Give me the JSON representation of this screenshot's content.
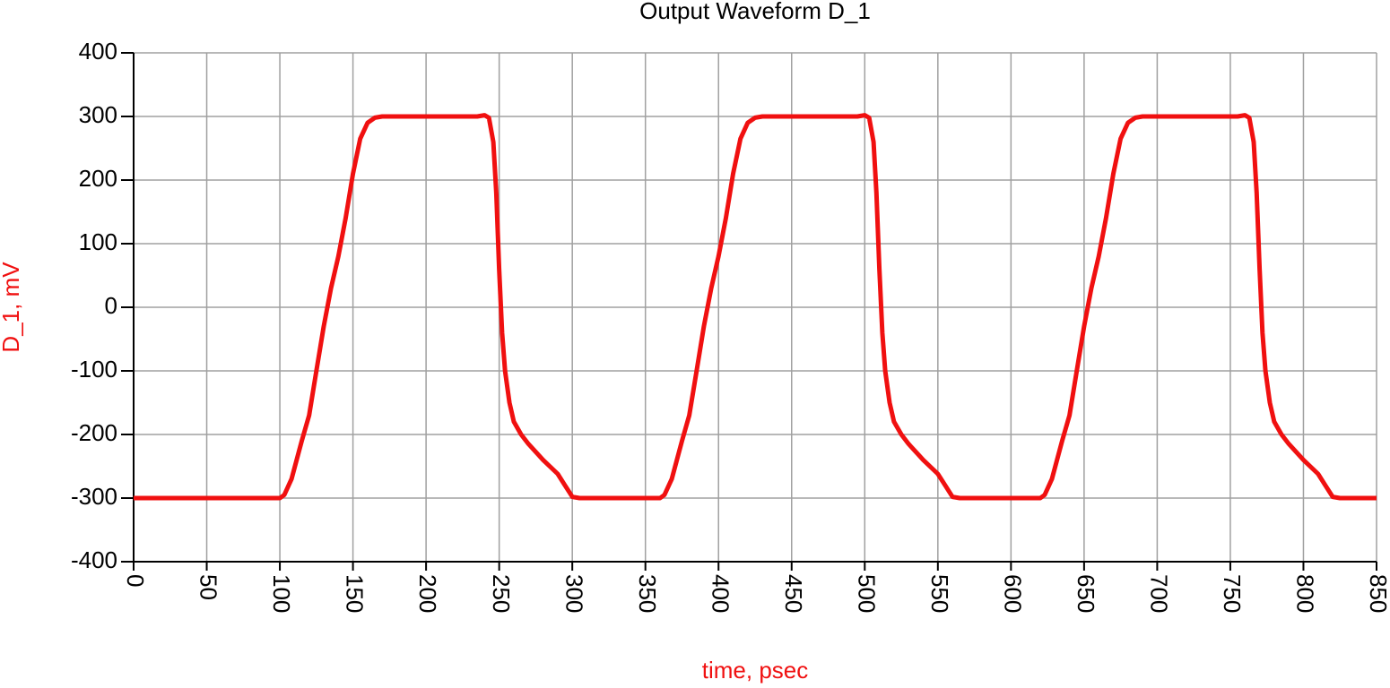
{
  "chart_data": {
    "type": "line",
    "title": "Output Waveform D_1",
    "x_label": "time, psec",
    "y_label": "D_1, mV",
    "xlim": [
      0,
      850
    ],
    "ylim": [
      -400,
      400
    ],
    "xticks": [
      0,
      50,
      100,
      150,
      200,
      250,
      300,
      350,
      400,
      450,
      500,
      550,
      600,
      650,
      700,
      750,
      800,
      850
    ],
    "yticks": [
      -400,
      -300,
      -200,
      -100,
      0,
      100,
      200,
      300,
      400
    ],
    "grid": true,
    "series": [
      {
        "name": "D_1",
        "color": "#f01010",
        "x": [
          0,
          100,
          103,
          108,
          115,
          120,
          125,
          130,
          135,
          140,
          145,
          150,
          155,
          160,
          165,
          170,
          235,
          240,
          243,
          246,
          248,
          250,
          252,
          254,
          257,
          260,
          265,
          270,
          280,
          290,
          295,
          300,
          305,
          360,
          363,
          368,
          375,
          380,
          385,
          390,
          395,
          400,
          405,
          410,
          415,
          420,
          425,
          430,
          495,
          500,
          503,
          506,
          508,
          510,
          512,
          514,
          517,
          520,
          525,
          530,
          540,
          550,
          555,
          560,
          565,
          620,
          623,
          628,
          635,
          640,
          645,
          650,
          655,
          660,
          665,
          670,
          675,
          680,
          685,
          690,
          755,
          760,
          763,
          766,
          768,
          770,
          772,
          774,
          777,
          780,
          785,
          790,
          800,
          810,
          815,
          820,
          825,
          850
        ],
        "values": [
          -300,
          -300,
          -295,
          -270,
          -210,
          -170,
          -100,
          -30,
          30,
          80,
          140,
          210,
          265,
          290,
          298,
          300,
          300,
          302,
          298,
          260,
          180,
          60,
          -40,
          -100,
          -150,
          -180,
          -200,
          -215,
          -240,
          -262,
          -280,
          -298,
          -300,
          -300,
          -295,
          -270,
          -210,
          -170,
          -100,
          -30,
          30,
          80,
          140,
          210,
          265,
          290,
          298,
          300,
          300,
          302,
          298,
          260,
          180,
          60,
          -40,
          -100,
          -150,
          -180,
          -200,
          -215,
          -240,
          -262,
          -280,
          -298,
          -300,
          -300,
          -295,
          -270,
          -210,
          -170,
          -100,
          -30,
          30,
          80,
          140,
          210,
          265,
          290,
          298,
          300,
          300,
          302,
          298,
          260,
          180,
          60,
          -40,
          -100,
          -150,
          -180,
          -200,
          -215,
          -240,
          -262,
          -280,
          -298,
          -300,
          -300
        ]
      }
    ]
  }
}
